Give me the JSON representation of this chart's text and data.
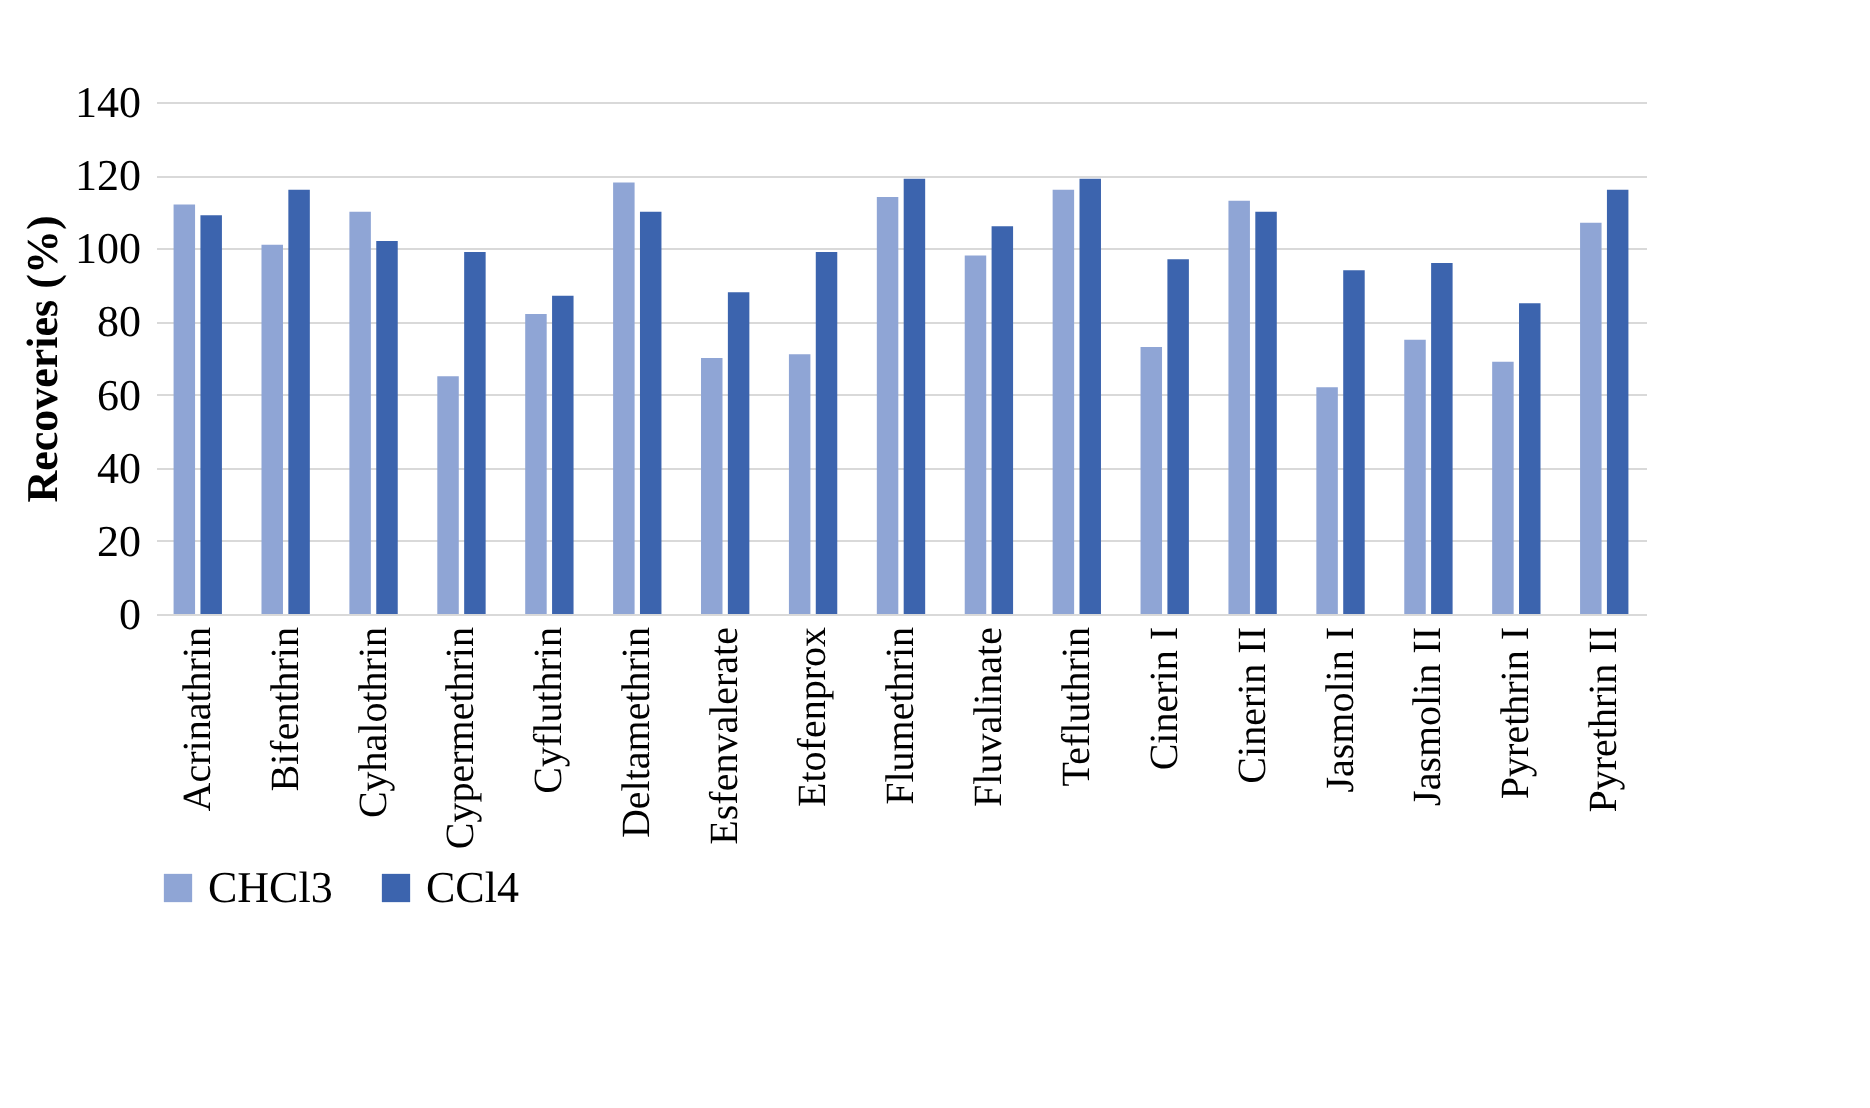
{
  "chart_data": {
    "type": "bar",
    "ylabel": "Recoveries (%)",
    "categories": [
      "Acrinathrin",
      "Bifenthrin",
      "Cyhalothrin",
      "Cypermethrin",
      "Cyfluthrin",
      "Deltamethrin",
      "Esfenvalerate",
      "Etofenprox",
      "Flumethrin",
      "Fluvalinate",
      "Tefluthrin",
      "Cinerin I",
      "Cinerin II",
      "Jasmolin I",
      "Jasmolin II",
      "Pyrethrin I",
      "Pyrethrin II"
    ],
    "series": [
      {
        "name": "CHCl3",
        "color": "#8fa5d5",
        "values": [
          112,
          101,
          110,
          65,
          82,
          118,
          70,
          71,
          114,
          98,
          116,
          73,
          113,
          62,
          75,
          69,
          107
        ]
      },
      {
        "name": "CCl4",
        "color": "#3c64ae",
        "values": [
          109,
          116,
          102,
          99,
          87,
          110,
          88,
          99,
          119,
          106,
          119,
          97,
          110,
          94,
          96,
          85,
          116
        ]
      }
    ],
    "ylim": [
      0,
      140
    ],
    "yticks": [
      0,
      20,
      40,
      60,
      80,
      100,
      120,
      140
    ],
    "grid": "y",
    "legend": "bottom"
  }
}
